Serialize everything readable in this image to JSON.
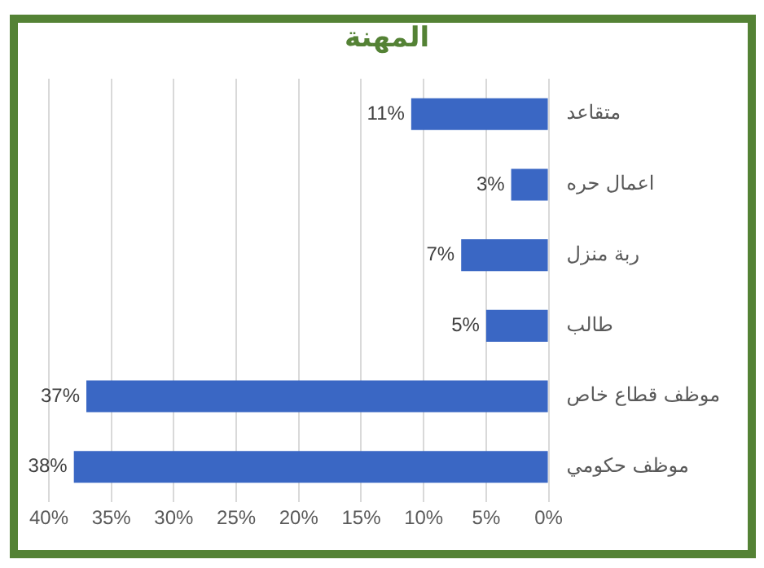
{
  "chart_data": {
    "type": "bar",
    "orientation": "horizontal",
    "title": "المهنة",
    "categories": [
      "متقاعد",
      "اعمال حره",
      "ربة منزل",
      "طالب",
      "موظف قطاع خاص",
      "موظف حكومي"
    ],
    "values": [
      11,
      3,
      7,
      5,
      37,
      38
    ],
    "value_labels": [
      "11%",
      "3%",
      "7%",
      "5%",
      "37%",
      "38%"
    ],
    "color": "#3a67c4",
    "xlim": [
      40,
      0
    ],
    "xticks": [
      {
        "value": 40,
        "label": "40%"
      },
      {
        "value": 35,
        "label": "35%"
      },
      {
        "value": 30,
        "label": "30%"
      },
      {
        "value": 25,
        "label": "25%"
      },
      {
        "value": 20,
        "label": "20%"
      },
      {
        "value": 15,
        "label": "15%"
      },
      {
        "value": 10,
        "label": "10%"
      },
      {
        "value": 5,
        "label": "5%"
      },
      {
        "value": 0,
        "label": "0%"
      }
    ],
    "grid": "x",
    "legend": false
  }
}
